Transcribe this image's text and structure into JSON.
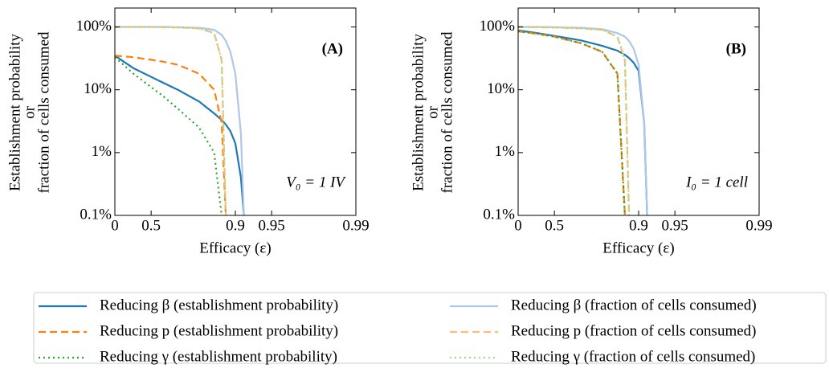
{
  "chart_data": [
    {
      "type": "line",
      "panel_label": "(A)",
      "condition": "V₀ = 1 IV",
      "xlabel": "Efficacy (ε)",
      "ylabel": [
        "Establishment probability",
        "or",
        "fraction of cells consumed"
      ],
      "xscale": "neg_log10_one_minus",
      "yscale": "log",
      "xlim": [
        0,
        0.99
      ],
      "xticks": [
        0,
        0.5,
        0.9,
        0.95,
        0.99
      ],
      "ylim": [
        0.1,
        200
      ],
      "yticks": [
        {
          "value": 0.1,
          "label": "0.1%"
        },
        {
          "value": 1,
          "label": "1%"
        },
        {
          "value": 10,
          "label": "10%"
        },
        {
          "value": 100,
          "label": "100%"
        }
      ],
      "x": [
        0,
        0.3,
        0.5,
        0.6,
        0.7,
        0.8,
        0.85,
        0.87,
        0.88,
        0.89,
        0.9,
        0.91,
        0.915
      ],
      "series": [
        {
          "name": "Reducing β (establishment probability)",
          "color": "#1f77b4",
          "dash": "solid",
          "values": [
            35,
            22,
            16,
            13,
            10,
            6.5,
            4.2,
            3.3,
            2.8,
            2.2,
            1.4,
            0.4,
            0.1
          ]
        },
        {
          "name": "Reducing p (establishment probability)",
          "color": "#ff7f0e",
          "dash": "dashed",
          "values": [
            35,
            33,
            30,
            28,
            25,
            18,
            10,
            3,
            0.1,
            null,
            null,
            null,
            null
          ]
        },
        {
          "name": "Reducing γ (establishment probability)",
          "color": "#2ca02c",
          "dash": "dotted",
          "values": [
            33,
            18,
            11,
            8,
            5,
            2.5,
            1,
            0.1,
            null,
            null,
            null,
            null,
            null
          ]
        },
        {
          "name": "Reducing β (fraction of cells consumed)",
          "color": "#aec7e8",
          "dash": "solid",
          "values": [
            100,
            100,
            100,
            100,
            99,
            97,
            90,
            75,
            60,
            40,
            18,
            2,
            0.1
          ]
        },
        {
          "name": "Reducing p (fraction of cells consumed)",
          "color": "#ffbb78",
          "dash": "dashed",
          "values": [
            100,
            100,
            100,
            99,
            98,
            95,
            80,
            30,
            0.1,
            null,
            null,
            null,
            null
          ]
        },
        {
          "name": "Reducing γ (fraction of cells consumed)",
          "color": "#98df8a",
          "dash": "dotted",
          "values": [
            100,
            100,
            100,
            99,
            98,
            95,
            80,
            30,
            0.1,
            null,
            null,
            null,
            null
          ]
        }
      ]
    },
    {
      "type": "line",
      "panel_label": "(B)",
      "condition": "I₀ = 1 cell",
      "xlabel": "Efficacy (ε)",
      "ylabel": [
        "Establishment probability",
        "or",
        "fraction of cells consumed"
      ],
      "xscale": "neg_log10_one_minus",
      "yscale": "log",
      "xlim": [
        0,
        0.99
      ],
      "xticks": [
        0,
        0.5,
        0.9,
        0.95,
        0.99
      ],
      "ylim": [
        0.1,
        200
      ],
      "yticks": [
        {
          "value": 0.1,
          "label": "0.1%"
        },
        {
          "value": 1,
          "label": "1%"
        },
        {
          "value": 10,
          "label": "10%"
        },
        {
          "value": 100,
          "label": "100%"
        }
      ],
      "x": [
        0,
        0.3,
        0.5,
        0.6,
        0.7,
        0.8,
        0.85,
        0.87,
        0.88,
        0.89,
        0.9,
        0.91,
        0.915
      ],
      "series": [
        {
          "color": "#1f77b4",
          "dash": "solid",
          "values": [
            88,
            80,
            72,
            67,
            61,
            50,
            42,
            36,
            32,
            27,
            20,
            3,
            0.1
          ]
        },
        {
          "color": "#ff7f0e",
          "dash": "dashed",
          "values": [
            85,
            78,
            70,
            63,
            55,
            40,
            18,
            0.1,
            null,
            null,
            null,
            null,
            null
          ]
        },
        {
          "color": "#2ca02c",
          "dash": "dotted",
          "values": [
            85,
            78,
            70,
            63,
            55,
            40,
            18,
            0.1,
            null,
            null,
            null,
            null,
            null
          ]
        },
        {
          "color": "#aec7e8",
          "dash": "solid",
          "values": [
            100,
            100,
            99,
            98,
            97,
            92,
            80,
            70,
            60,
            45,
            25,
            3,
            0.1
          ]
        },
        {
          "color": "#ffbb78",
          "dash": "dashed",
          "values": [
            100,
            99,
            98,
            97,
            95,
            90,
            70,
            30,
            0.1,
            null,
            null,
            null,
            null
          ]
        },
        {
          "color": "#98df8a",
          "dash": "dotted",
          "values": [
            100,
            99,
            98,
            97,
            95,
            90,
            70,
            30,
            0.1,
            null,
            null,
            null,
            null
          ]
        }
      ]
    }
  ]
}
